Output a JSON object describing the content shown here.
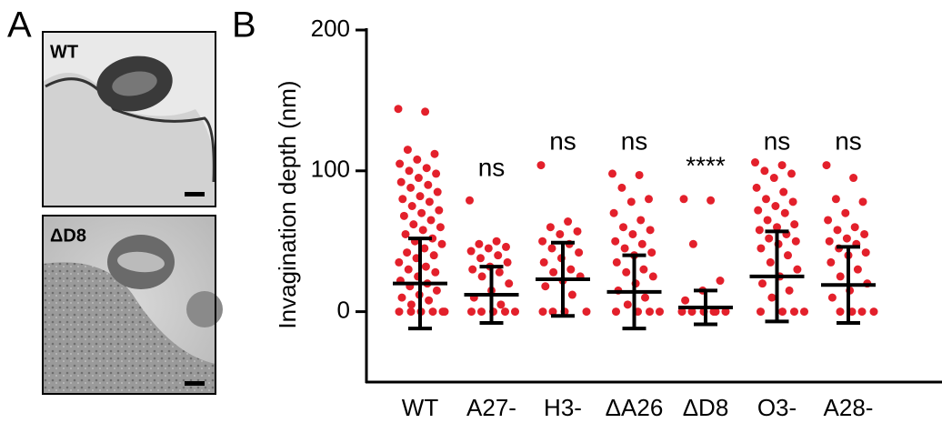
{
  "panels": {
    "a": {
      "label": "A",
      "images": [
        "WT",
        "ΔD8"
      ]
    },
    "b": {
      "label": "B"
    }
  },
  "chart_data": {
    "type": "dot-plot",
    "y_label": "Invagination depth (nm)",
    "categories": [
      "WT",
      "A27-",
      "H3-",
      "ΔA26",
      "ΔD8",
      "O3-",
      "A28-"
    ],
    "annotations": [
      null,
      "ns",
      "ns",
      "ns",
      "****",
      "ns",
      "ns"
    ],
    "color": "#e3202b",
    "summary_color": "#000000",
    "points": [
      [
        144,
        142,
        115,
        112,
        108,
        105,
        102,
        100,
        98,
        95,
        92,
        90,
        88,
        85,
        82,
        80,
        78,
        75,
        72,
        70,
        68,
        65,
        62,
        60,
        58,
        55,
        52,
        50,
        48,
        45,
        42,
        40,
        38,
        35,
        32,
        30,
        28,
        25,
        22,
        20,
        18,
        15,
        12,
        10,
        8,
        5,
        0,
        0,
        0,
        0,
        0,
        0
      ],
      [
        79,
        50,
        48,
        46,
        45,
        43,
        40,
        38,
        35,
        32,
        30,
        28,
        25,
        20,
        15,
        10,
        5,
        0,
        0,
        0,
        0,
        0
      ],
      [
        104,
        64,
        60,
        57,
        55,
        50,
        48,
        45,
        42,
        38,
        35,
        30,
        28,
        25,
        22,
        18,
        12,
        0,
        0,
        0,
        0
      ],
      [
        98,
        97,
        88,
        80,
        78,
        70,
        65,
        60,
        58,
        55,
        50,
        48,
        45,
        42,
        40,
        35,
        30,
        28,
        25,
        20,
        15,
        10,
        5,
        0,
        0,
        0,
        0
      ],
      [
        80,
        79,
        48,
        22,
        15,
        8,
        0,
        0,
        0,
        0,
        0,
        0
      ],
      [
        106,
        104,
        100,
        98,
        95,
        88,
        85,
        80,
        78,
        75,
        72,
        70,
        65,
        62,
        60,
        58,
        55,
        52,
        50,
        48,
        45,
        40,
        35,
        30,
        25,
        20,
        15,
        10,
        0,
        0,
        0,
        0
      ],
      [
        104,
        95,
        80,
        78,
        70,
        65,
        60,
        58,
        55,
        52,
        50,
        48,
        45,
        42,
        40,
        35,
        30,
        25,
        20,
        15,
        10,
        0,
        0,
        0,
        0
      ]
    ],
    "mean": [
      20,
      12,
      23,
      14,
      3,
      25,
      19
    ],
    "sd": [
      32,
      20,
      26,
      26,
      12,
      32,
      27
    ],
    "ylim": [
      -50,
      200
    ],
    "yticks": [
      0,
      100,
      200
    ]
  }
}
